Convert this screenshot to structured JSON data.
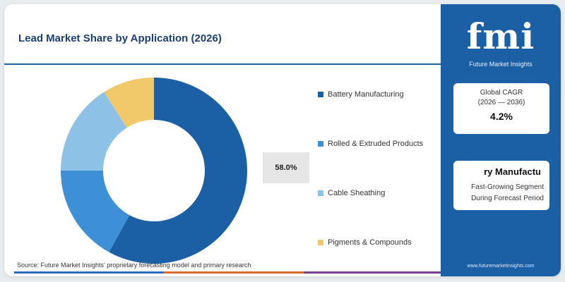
{
  "header": {
    "title": "Lead Market Share by Application (2026)"
  },
  "chart_data": {
    "type": "pie",
    "variant": "donut",
    "title": "Lead Market Share by Application (2026)",
    "categories": [
      "Battery Manufacturing",
      "Rolled & Extruded Products",
      "Cable Sheathing",
      "Pigments & Compounds"
    ],
    "values": [
      58.0,
      17.0,
      16.0,
      9.0
    ],
    "colors": [
      "#1b5fa4",
      "#3d8fd6",
      "#8ec1e6",
      "#f1c86a"
    ],
    "highlight_label": "58.0%",
    "legend_position": "right"
  },
  "source": "Source: Future Market Insights' proprietary forecasting model and primary research",
  "side_panel": {
    "logo_text": "fmi",
    "logo_subtext": "Future Market Insights",
    "cagr_label": "Global CAGR",
    "cagr_period": "(2026 — 2036)",
    "cagr_value": "4.2%",
    "segment_name": "ry Manufactu",
    "segment_desc_line1": "Fast-Growing Segment",
    "segment_desc_line2": "During Forecast Period",
    "website": "www.futuremarketinsights.com"
  }
}
